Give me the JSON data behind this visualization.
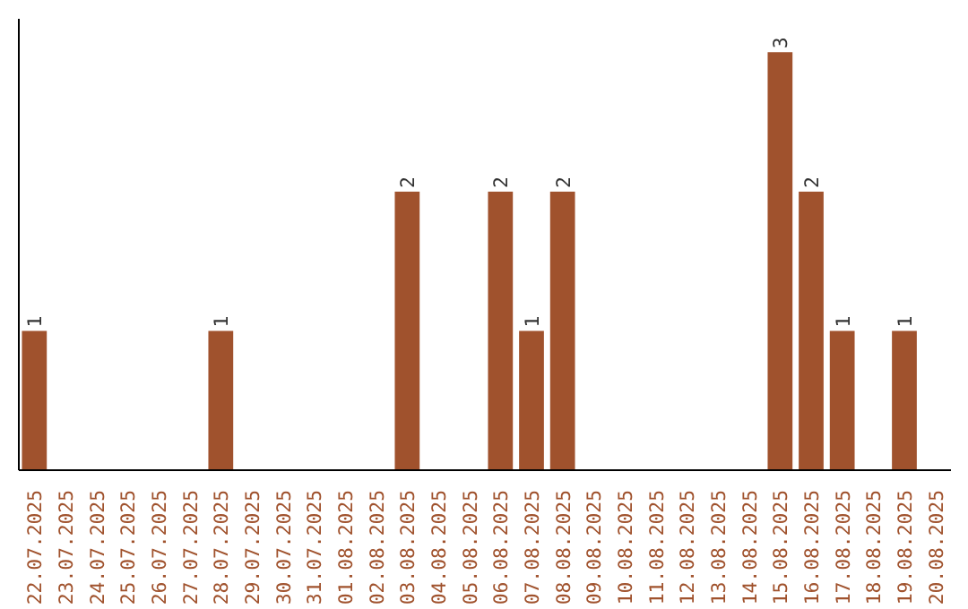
{
  "chart_data": {
    "type": "bar",
    "categories": [
      "22.07.2025",
      "23.07.2025",
      "24.07.2025",
      "25.07.2025",
      "26.07.2025",
      "27.07.2025",
      "28.07.2025",
      "29.07.2025",
      "30.07.2025",
      "31.07.2025",
      "01.08.2025",
      "02.08.2025",
      "03.08.2025",
      "04.08.2025",
      "05.08.2025",
      "06.08.2025",
      "07.08.2025",
      "08.08.2025",
      "09.08.2025",
      "10.08.2025",
      "11.08.2025",
      "12.08.2025",
      "13.08.2025",
      "14.08.2025",
      "15.08.2025",
      "16.08.2025",
      "17.08.2025",
      "18.08.2025",
      "19.08.2025",
      "20.08.2025"
    ],
    "values": [
      1,
      0,
      0,
      0,
      0,
      0,
      1,
      0,
      0,
      0,
      0,
      0,
      2,
      0,
      0,
      2,
      1,
      2,
      0,
      0,
      0,
      0,
      0,
      0,
      3,
      2,
      1,
      0,
      1,
      0
    ],
    "value_labels": [
      "1",
      null,
      null,
      null,
      null,
      null,
      "1",
      null,
      null,
      null,
      null,
      null,
      "2",
      null,
      null,
      "2",
      "1",
      "2",
      null,
      null,
      null,
      null,
      null,
      null,
      "3",
      "2",
      "1",
      null,
      "1",
      null
    ],
    "color": "#a0522d",
    "tick_labels": "x",
    "grid": false
  }
}
